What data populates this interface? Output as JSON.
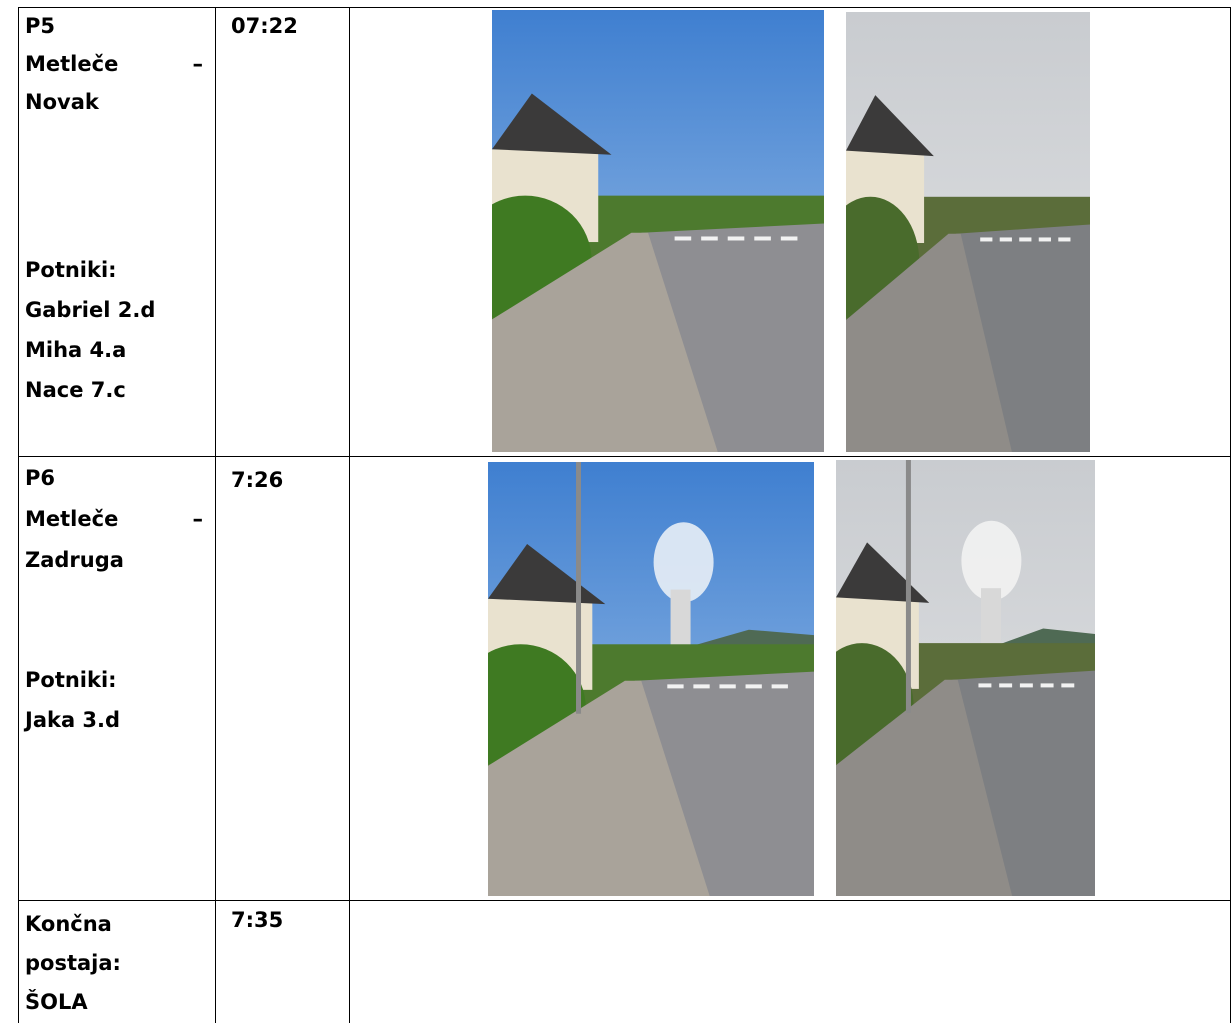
{
  "table": {
    "rows": [
      {
        "stop": [
          "P5",
          "Metleče –",
          "Novak"
        ],
        "time": "07:22",
        "passengers_label": "Potniki:",
        "passengers": [
          "Gabriel 2.d",
          "Miha 4.a",
          "Nace 7.c"
        ]
      },
      {
        "stop": [
          "P6",
          "Metleče –",
          "Zadruga"
        ],
        "time": "7:26",
        "passengers_label": "Potniki:",
        "passengers": [
          "Jaka 3.d"
        ]
      },
      {
        "stop": [
          "Končna",
          "postaja:",
          "ŠOLA"
        ],
        "time": "7:35"
      }
    ]
  }
}
